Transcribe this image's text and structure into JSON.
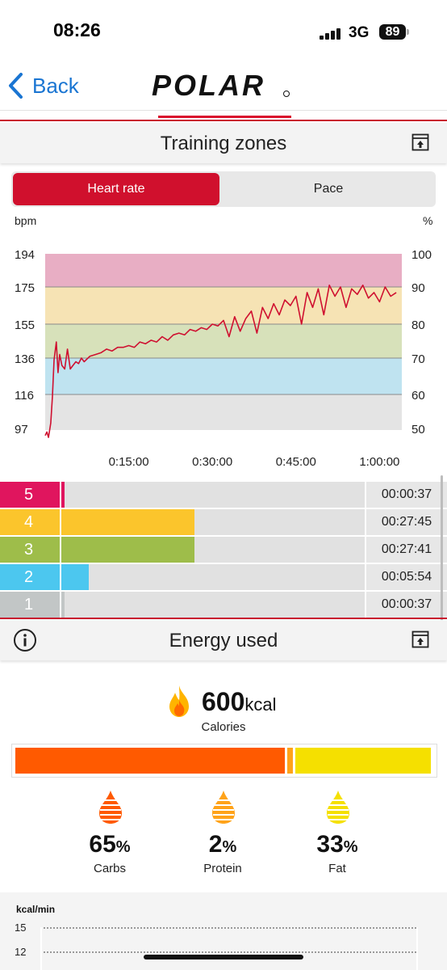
{
  "status_bar": {
    "time": "08:26",
    "network": "3G",
    "battery": "89"
  },
  "nav": {
    "back_label": "Back",
    "logo_text": "POLAR"
  },
  "training_zones": {
    "title": "Training zones",
    "tabs": [
      {
        "label": "Heart rate",
        "active": true
      },
      {
        "label": "Pace",
        "active": false
      }
    ],
    "zones": [
      {
        "zone": "5",
        "time": "00:00:37",
        "fraction": 0.01,
        "color": "#e0155e"
      },
      {
        "zone": "4",
        "time": "00:27:45",
        "fraction": 0.44,
        "color": "#fbc52c"
      },
      {
        "zone": "3",
        "time": "00:27:41",
        "fraction": 0.44,
        "color": "#9ebd4a"
      },
      {
        "zone": "2",
        "time": "00:05:54",
        "fraction": 0.09,
        "color": "#4cc7ef"
      },
      {
        "zone": "1",
        "time": "00:00:37",
        "fraction": 0.01,
        "color": "#c2c6c6"
      }
    ]
  },
  "chart_data": {
    "type": "line",
    "ylabel": "bpm",
    "ylabel_right": "%",
    "y_ticks": [
      "194",
      "175",
      "155",
      "136",
      "116",
      "97"
    ],
    "y_ticks_right": [
      "100",
      "90",
      "80",
      "70",
      "60",
      "50"
    ],
    "x_ticks": [
      "0:15:00",
      "0:30:00",
      "0:45:00",
      "1:00:00"
    ],
    "xlim_minutes": [
      0,
      64
    ],
    "ylim": [
      90,
      194
    ],
    "zone_bands": [
      {
        "from": 175,
        "to": 194,
        "color": "#e8aec4"
      },
      {
        "from": 155,
        "to": 175,
        "color": "#f6e3b4"
      },
      {
        "from": 136,
        "to": 155,
        "color": "#d7e1ba"
      },
      {
        "from": 116,
        "to": 136,
        "color": "#bfe3f0"
      },
      {
        "from": 90,
        "to": 116,
        "color": "#e4e4e4"
      }
    ],
    "line_color": "#cf1030",
    "series": [
      {
        "values_x_min": [
          0,
          0.3,
          0.6,
          1,
          1.3,
          1.6,
          2,
          2.3,
          2.6,
          3,
          3.5,
          4,
          4.5,
          5,
          5.5,
          6,
          6.5,
          7,
          8,
          9,
          10,
          11,
          12,
          13,
          14,
          15,
          16,
          17,
          18,
          19,
          20,
          21,
          22,
          23,
          24,
          25,
          26,
          27,
          28,
          29,
          30,
          31,
          32,
          33,
          34,
          35,
          36,
          37,
          38,
          39,
          40,
          41,
          42,
          43,
          44,
          45,
          46,
          47,
          48,
          49,
          50,
          51,
          52,
          53,
          54,
          55,
          56,
          57,
          58,
          59,
          60,
          61,
          62,
          63
        ],
        "values_bpm": [
          93,
          95,
          92,
          100,
          115,
          135,
          145,
          128,
          138,
          132,
          130,
          141,
          130,
          132,
          134,
          133,
          136,
          134,
          137,
          138,
          139,
          141,
          140,
          142,
          142,
          143,
          142,
          145,
          144,
          146,
          145,
          148,
          146,
          149,
          150,
          149,
          152,
          151,
          153,
          152,
          155,
          154,
          157,
          148,
          159,
          151,
          158,
          162,
          150,
          164,
          158,
          166,
          160,
          168,
          165,
          170,
          155,
          172,
          164,
          174,
          160,
          176,
          170,
          175,
          164,
          174,
          171,
          176,
          169,
          172,
          167,
          175,
          170,
          172
        ]
      }
    ]
  },
  "energy": {
    "title": "Energy used",
    "calories_value": "600",
    "calories_unit": "kcal",
    "calories_label": "Calories",
    "macros": [
      {
        "pct": "65",
        "label": "Carbs",
        "fraction": 0.65,
        "color": "#ff5a00"
      },
      {
        "pct": "2",
        "label": "Protein",
        "fraction": 0.02,
        "color": "#ffa31a"
      },
      {
        "pct": "33",
        "label": "Fat",
        "fraction": 0.33,
        "color": "#f5e000"
      }
    ],
    "percent_sign": "%"
  },
  "kcal_chart": {
    "ylabel": "kcal/min",
    "ticks": [
      "15",
      "12"
    ]
  }
}
